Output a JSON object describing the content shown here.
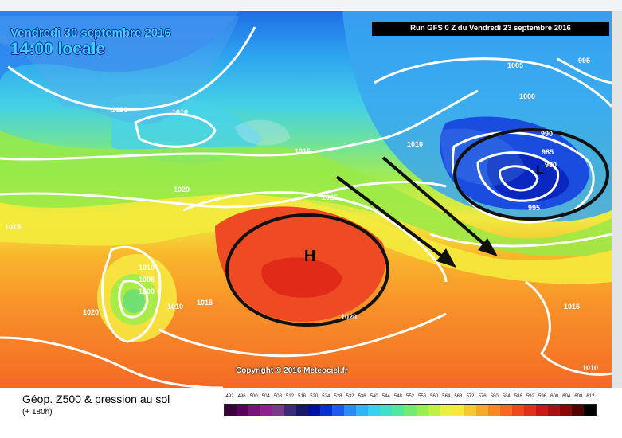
{
  "map": {
    "date_title": "Vendredi 30 septembre 2016",
    "time_title": "14:00 locale",
    "run_info": "Run GFS 0 Z du Vendredi 23 septembre 2016",
    "copyright": "Copyright © 2016 Meteociel.fr",
    "high_label": "H",
    "low_label": "L",
    "pressure_labels": [
      "1020",
      "1010",
      "1015",
      "1020",
      "1025",
      "1010",
      "1005",
      "1000",
      "1010",
      "1015",
      "1020",
      "1020",
      "1010",
      "1005",
      "1000",
      "990",
      "985",
      "980",
      "995",
      "995",
      "1015",
      "1010",
      "1015"
    ],
    "colors": {
      "deep_blue": "#1a3cdc",
      "cyan": "#44c8f0",
      "green": "#8fe44c",
      "yellow": "#f2f046",
      "orange": "#f8a22a",
      "red": "#f03a24",
      "isobar": "#ffffff",
      "annotation": "#000000"
    }
  },
  "legend": {
    "title": "Géop. Z500 & pression au sol",
    "subtitle": "(+ 180h)",
    "ticks": [
      "492",
      "496",
      "500",
      "504",
      "508",
      "512",
      "516",
      "520",
      "524",
      "528",
      "532",
      "536",
      "540",
      "544",
      "548",
      "552",
      "556",
      "560",
      "564",
      "568",
      "572",
      "576",
      "580",
      "584",
      "588",
      "592",
      "596",
      "600",
      "604",
      "608",
      "612"
    ],
    "colors": [
      "#3a003a",
      "#5a005a",
      "#7a107a",
      "#902090",
      "#7a3a8a",
      "#3a2a7a",
      "#18186a",
      "#0010a0",
      "#0030d0",
      "#1a5af0",
      "#2a8cf8",
      "#30b4f8",
      "#38d2f0",
      "#40e0c8",
      "#50e8a0",
      "#70ec70",
      "#98f050",
      "#c0f040",
      "#e8f040",
      "#f8e838",
      "#f8c830",
      "#f8a828",
      "#f88820",
      "#f86820",
      "#f04818",
      "#e03018",
      "#c81818",
      "#a81010",
      "#880808",
      "#500000",
      "#000000"
    ]
  }
}
